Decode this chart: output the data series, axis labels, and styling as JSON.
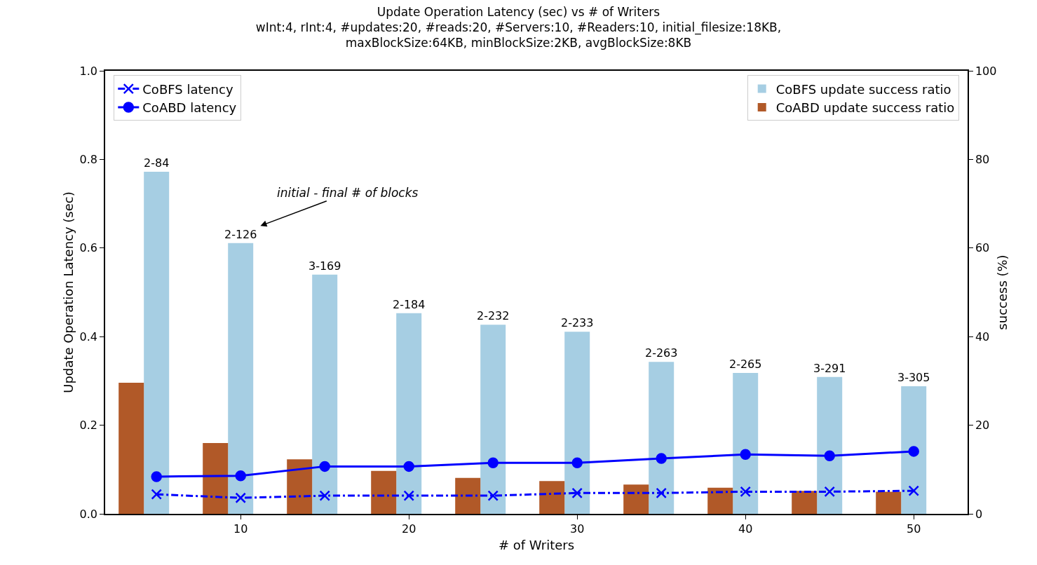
{
  "chart_data": {
    "type": "bar",
    "title": "Update Operation Latency (sec) vs # of Writers",
    "subtitle": "wInt:4, rInt:4, #updates:20, #reads:20, #Servers:10, #Readers:10, initial_filesize:18KB,\nmaxBlockSize:64KB, minBlockSize:2KB, avgBlockSize:8KB",
    "xlabel": "# of Writers",
    "ylabel": "Update Operation Latency (sec)",
    "y2label": "success (%)",
    "x": [
      5,
      10,
      15,
      20,
      25,
      30,
      35,
      40,
      45,
      50
    ],
    "xlim": [
      1.95,
      53.2
    ],
    "xticks": [
      10,
      20,
      30,
      40,
      50
    ],
    "ylim": [
      0,
      1
    ],
    "yticks": [
      {
        "value": 0,
        "label": "0.0"
      },
      {
        "value": 0.2,
        "label": "0.2"
      },
      {
        "value": 0.4,
        "label": "0.4"
      },
      {
        "value": 0.6,
        "label": "0.6"
      },
      {
        "value": 0.8,
        "label": "0.8"
      },
      {
        "value": 1,
        "label": "1.0"
      }
    ],
    "y2lim": [
      0,
      100
    ],
    "y2ticks": [
      0,
      20,
      40,
      60,
      80,
      100
    ],
    "series": [
      {
        "name": "CoBFS update success ratio",
        "axis": "y2",
        "color": "#a6cee3",
        "values": [
          77.2,
          61.1,
          54.0,
          45.3,
          42.7,
          41.1,
          34.3,
          31.8,
          30.9,
          28.8
        ],
        "value_labels": [
          "2-84",
          "2-126",
          "3-169",
          "2-184",
          "2-232",
          "2-233",
          "2-263",
          "2-265",
          "3-291",
          "3-305"
        ]
      },
      {
        "name": "CoABD update success ratio",
        "axis": "y2",
        "color": "#b15928",
        "values": [
          29.6,
          16.0,
          12.3,
          9.7,
          8.1,
          7.4,
          6.6,
          5.9,
          5.2,
          5.0
        ]
      },
      {
        "name": "CoBFS latency",
        "type": "line",
        "color": "#0000ff",
        "marker": "cross",
        "line_style": "dashdot",
        "values": [
          0.044,
          0.036,
          0.041,
          0.041,
          0.041,
          0.047,
          0.047,
          0.05,
          0.05,
          0.052
        ]
      },
      {
        "name": "CoABD latency",
        "type": "line",
        "color": "#0000ff",
        "marker": "circle",
        "line_style": "solid",
        "values": [
          0.084,
          0.086,
          0.107,
          0.107,
          0.115,
          0.115,
          0.125,
          0.134,
          0.131,
          0.141
        ]
      }
    ],
    "annotations": [
      "initial - final # of blocks"
    ],
    "legend": "top",
    "grid": false
  }
}
